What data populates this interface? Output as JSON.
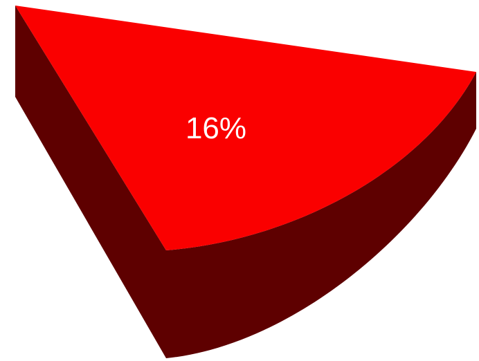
{
  "chart_data": {
    "type": "pie",
    "title": "",
    "slices": [
      {
        "label": "16%",
        "value": 16
      }
    ],
    "style": "3d-exploded-slice",
    "colors": {
      "top": "#fa0000",
      "side": "#5e0000",
      "label": "#ffffff"
    }
  }
}
